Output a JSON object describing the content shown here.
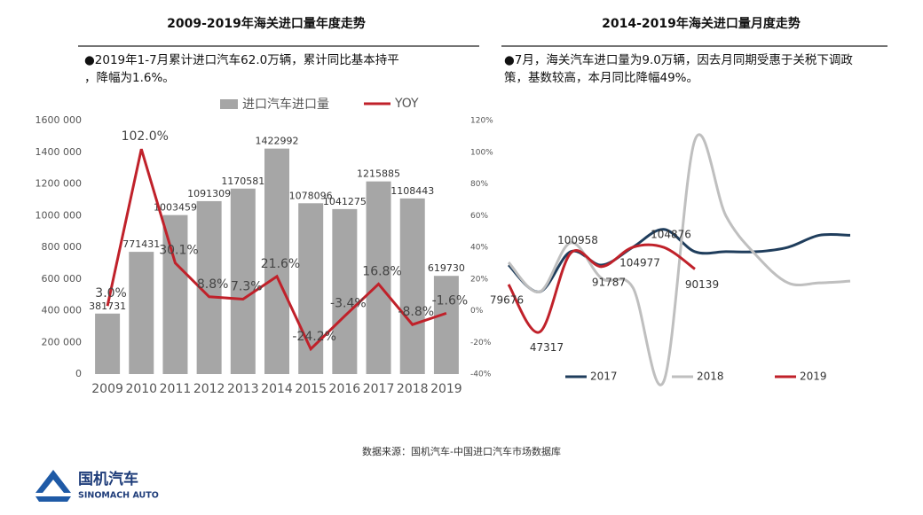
{
  "chart_data": [
    {
      "type": "bar",
      "title": "2009-2019年海关进口量年度走势",
      "subtitle": "●2019年1-7月累计进口汽车62.0万辆，累计同比基本持平，降幅为1.6%。",
      "categories": [
        "2009",
        "2010",
        "2011",
        "2012",
        "2013",
        "2014",
        "2015",
        "2016",
        "2017",
        "2018",
        "2019"
      ],
      "series": [
        {
          "name": "进口汽车进口量",
          "type": "bar",
          "color": "#a6a6a6",
          "values": [
            381731,
            771431,
            1003459,
            1091309,
            1170581,
            1422992,
            1078096,
            1041275,
            1215885,
            1108443,
            619730
          ]
        },
        {
          "name": "YOY",
          "type": "line",
          "axis": "y2",
          "color": "#c0212a",
          "values": [
            3.0,
            102.0,
            30.1,
            8.8,
            7.3,
            21.6,
            -24.2,
            -3.4,
            16.8,
            -8.8,
            -1.6
          ],
          "value_labels": [
            "3.0%",
            "102.0%",
            "30.1%",
            "8.8%",
            "7.3%",
            "21.6%",
            "-24.2%",
            "-3.4%",
            "16.8%",
            "-8.8%",
            "-1.6%"
          ]
        }
      ],
      "ylim": [
        0,
        1600000
      ],
      "yticks": [
        0,
        {
          "value": 200000,
          "label": "200 000"
        },
        {
          "value": 400000,
          "label": "400 000"
        },
        {
          "value": 600000,
          "label": "600 000"
        },
        {
          "value": 800000,
          "label": "800 000"
        },
        {
          "value": 1000000,
          "label": "1000 000"
        },
        {
          "value": 1200000,
          "label": "1200 000"
        },
        {
          "value": 1400000,
          "label": "1400 000"
        },
        {
          "value": 1600000,
          "label": "1600 000"
        }
      ],
      "y2lim": [
        -40,
        120
      ],
      "y2ticks": [
        {
          "value": -40,
          "label": "-40%"
        },
        {
          "value": -20,
          "label": "-20%"
        },
        {
          "value": 0,
          "label": "0%"
        },
        {
          "value": 20,
          "label": "20%"
        },
        {
          "value": 40,
          "label": "40%"
        },
        {
          "value": 60,
          "label": "60%"
        },
        {
          "value": 80,
          "label": "80%"
        },
        {
          "value": 100,
          "label": "100%"
        },
        {
          "value": 120,
          "label": "120%"
        }
      ],
      "grid": false,
      "legend": "top"
    },
    {
      "type": "line",
      "title": "2014-2019年海关进口量月度走势",
      "subtitle": "●7月，海关汽车进口量为9.0万辆，因去月同期受惠于关税下调政策，基数较高，本月同比降幅49%。",
      "categories": [
        null,
        null,
        null,
        null,
        null,
        null,
        null,
        null,
        null,
        null,
        null,
        null
      ],
      "series": [
        {
          "name": "2017",
          "color": "#1f3d5c",
          "values": [
            92842,
            74632,
            101947,
            92842,
            104982,
            117122,
            101947,
            101947,
            101947,
            104982,
            113087,
            113087
          ]
        },
        {
          "name": "2018",
          "color": "#bfbfbf",
          "values": [
            94663,
            74632,
            108017,
            83737,
            77667,
            13932,
            177822,
            126227,
            98912,
            80702,
            80702,
            81917
          ]
        },
        {
          "name": "2019",
          "color": "#c0212a",
          "values": [
            79676,
            47317,
            100958,
            91787,
            104977,
            104876,
            90139,
            null,
            null,
            null,
            null,
            null
          ]
        }
      ],
      "legend": "bottom"
    }
  ],
  "source": "数据来源：国机汽车-中国进口汽车市场数据库",
  "logo": {
    "name": "国机汽车",
    "english": "SINOMACH AUTO"
  }
}
